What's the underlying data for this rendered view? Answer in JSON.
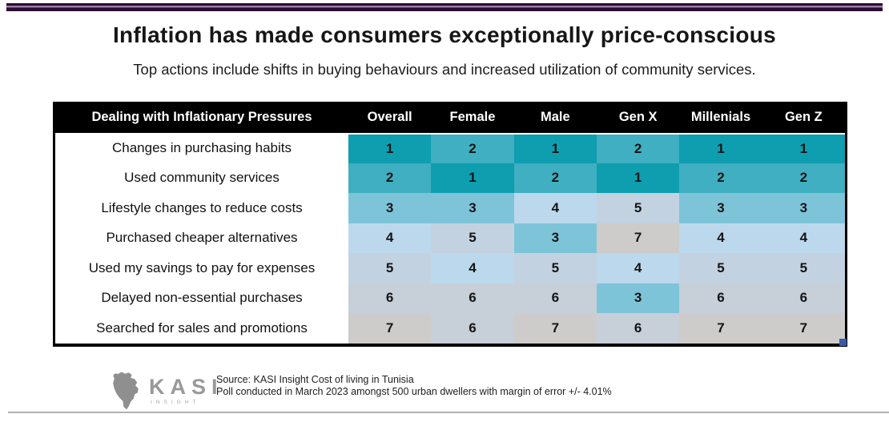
{
  "chart_data": {
    "type": "heatmap",
    "title": "Inflation has made consumers exceptionally price-conscious",
    "subtitle": "Top actions include shifts in buying behaviours and increased utilization of community services.",
    "row_header_label": "Dealing with Inflationary Pressures",
    "columns": [
      "Overall",
      "Female",
      "Male",
      "Gen X",
      "Millenials",
      "Gen Z"
    ],
    "rows": [
      {
        "label": "Changes in purchasing habits",
        "values": [
          1,
          2,
          1,
          2,
          1,
          1
        ]
      },
      {
        "label": "Used community services",
        "values": [
          2,
          1,
          2,
          1,
          2,
          2
        ]
      },
      {
        "label": "Lifestyle changes to reduce costs",
        "values": [
          3,
          3,
          4,
          5,
          3,
          3
        ]
      },
      {
        "label": "Purchased cheaper alternatives",
        "values": [
          4,
          5,
          3,
          7,
          4,
          4
        ]
      },
      {
        "label": "Used my savings to pay for expenses",
        "values": [
          5,
          4,
          5,
          4,
          5,
          5
        ]
      },
      {
        "label": "Delayed non-essential purchases",
        "values": [
          6,
          6,
          6,
          3,
          6,
          6
        ]
      },
      {
        "label": "Searched for sales and promotions",
        "values": [
          7,
          6,
          7,
          6,
          7,
          7
        ]
      }
    ],
    "value_scale": {
      "min": 1,
      "max": 7,
      "meaning": "rank, 1 = top action"
    },
    "palette": {
      "1": "#0E9EB0",
      "2": "#3FAFC1",
      "3": "#7EC4D9",
      "4": "#BCD8EC",
      "5": "#C3D2E1",
      "6": "#C7CFD9",
      "7": "#CDCCCB"
    },
    "legend": "none",
    "grid": "off"
  },
  "colors": {
    "accent_bar_dark": "#2B0D33",
    "accent_bar_highlight": "#9B7BA3",
    "table_header_bg": "#000000",
    "table_header_text": "#FFFFFF",
    "fill_handle_blue": "#3A5BA9",
    "bottom_line_gray": "#B0B0B0",
    "logo_gray": "#8F8F8F"
  },
  "footer": {
    "brand": "KASI",
    "brand_sub": "INSIGHT",
    "source_line1": "Source: KASI Insight Cost of living in Tunisia",
    "source_line2": "Poll conducted in March 2023 amongst 500 urban dwellers with margin of error +/- 4.01%"
  }
}
